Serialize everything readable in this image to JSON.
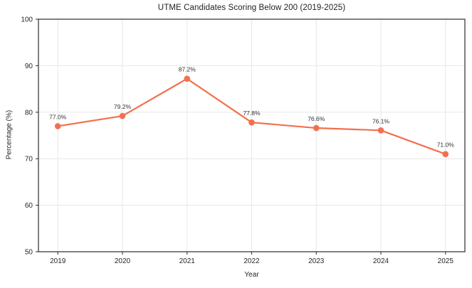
{
  "chart_data": {
    "type": "line",
    "title": "UTME Candidates Scoring Below 200 (2019-2025)",
    "xlabel": "Year",
    "ylabel": "Percentage (%)",
    "categories": [
      "2019",
      "2020",
      "2021",
      "2022",
      "2023",
      "2024",
      "2025"
    ],
    "values": [
      77.0,
      79.2,
      87.2,
      77.8,
      76.6,
      76.1,
      71.0
    ],
    "data_labels": [
      "77.0%",
      "79.2%",
      "87.2%",
      "77.8%",
      "76.6%",
      "76.1%",
      "71.0%"
    ],
    "ylim": [
      50,
      100
    ],
    "yticks": [
      50,
      60,
      70,
      80,
      90,
      100
    ],
    "grid": true,
    "legend_position": "none",
    "line_color": "#f2704e",
    "marker": "circle",
    "grid_color": "#e7e7e7",
    "spine_color": "#4a4a4a",
    "tick_text_color": "#262626",
    "label_text_color": "#333333",
    "background_color": "#ffffff"
  }
}
